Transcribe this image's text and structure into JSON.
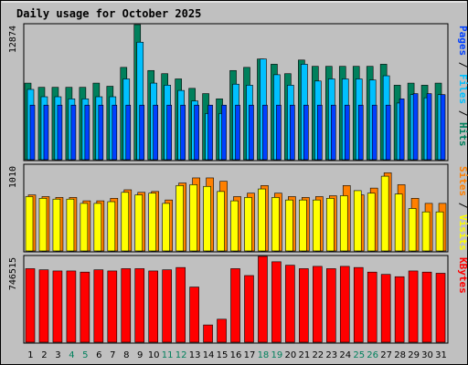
{
  "colors": {
    "background": "#c0c0c0",
    "hits": "#00805c",
    "files": "#00c0ff",
    "pages": "#0040ff",
    "visits": "#ffff00",
    "sites": "#ff8000",
    "kbytes": "#ff0000",
    "title": "#0000ff",
    "weekend_tick": "#00805c",
    "weekday_tick": "#000000"
  },
  "chart_data": {
    "type": "bar",
    "title": "Daily usage for October 2025",
    "categories": [
      "1",
      "2",
      "3",
      "4",
      "5",
      "6",
      "7",
      "8",
      "9",
      "10",
      "11",
      "12",
      "13",
      "14",
      "15",
      "16",
      "17",
      "18",
      "19",
      "20",
      "21",
      "22",
      "23",
      "24",
      "25",
      "26",
      "27",
      "28",
      "29",
      "30",
      "31"
    ],
    "weekend_days": [
      "4",
      "5",
      "11",
      "12",
      "18",
      "19",
      "25",
      "26"
    ],
    "panels": [
      {
        "name": "traffic",
        "max_label": "12874",
        "ylim": [
          0,
          12874
        ],
        "side_labels": [
          "Pages",
          "/",
          "Files",
          "/",
          "Hits"
        ],
        "series": [
          {
            "name": "Hits",
            "values": [
              7300,
              6900,
              6900,
              6900,
              6900,
              7300,
              7000,
              8800,
              12874,
              8500,
              8200,
              7700,
              6800,
              6300,
              5800,
              8500,
              8800,
              9600,
              9100,
              8200,
              9500,
              8900,
              8900,
              8900,
              8900,
              8900,
              9100,
              7100,
              7300,
              7100,
              7300
            ]
          },
          {
            "name": "Files",
            "values": [
              6700,
              6000,
              6000,
              5800,
              5800,
              6000,
              6000,
              7700,
              11200,
              7300,
              7100,
              6600,
              5600,
              4400,
              4400,
              7200,
              7100,
              9600,
              8100,
              7100,
              9100,
              7500,
              7700,
              7700,
              7700,
              7600,
              8000,
              5400,
              6200,
              5900,
              6200
            ]
          },
          {
            "name": "Pages",
            "values": [
              5200,
              5200,
              5200,
              5200,
              5200,
              5200,
              5200,
              5200,
              5200,
              5200,
              5200,
              5200,
              5200,
              5200,
              5200,
              5200,
              5200,
              5200,
              5200,
              5200,
              5200,
              5200,
              5200,
              5200,
              5200,
              5200,
              5200,
              5800,
              6300,
              6300,
              6200
            ]
          }
        ]
      },
      {
        "name": "visitors",
        "max_label": "1010",
        "ylim": [
          0,
          1010
        ],
        "side_labels": [
          "Sites",
          "/",
          "Visits"
        ],
        "series": [
          {
            "name": "Visits",
            "values": [
              640,
              620,
              610,
              610,
              560,
              560,
              580,
              690,
              660,
              680,
              560,
              770,
              780,
              760,
              700,
              590,
              630,
              730,
              630,
              600,
              600,
              600,
              620,
              650,
              710,
              680,
              880,
              670,
              500,
              460,
              460
            ]
          },
          {
            "name": "Sites",
            "values": [
              660,
              640,
              630,
              630,
              590,
              590,
              620,
              720,
              690,
              700,
              600,
              800,
              860,
              860,
              820,
              640,
              680,
              770,
              680,
              640,
              630,
              640,
              650,
              770,
              660,
              740,
              920,
              780,
              620,
              560,
              560
            ]
          }
        ]
      },
      {
        "name": "volume",
        "max_label": "746515",
        "ylim": [
          0,
          746515
        ],
        "side_labels": [
          "KBytes"
        ],
        "series": [
          {
            "name": "KBytes",
            "values": [
              640000,
              630000,
              620000,
              620000,
              610000,
              630000,
              620000,
              640000,
              640000,
              620000,
              630000,
              650000,
              480000,
              150000,
              200000,
              640000,
              580000,
              746515,
              700000,
              670000,
              640000,
              660000,
              640000,
              660000,
              650000,
              610000,
              590000,
              570000,
              620000,
              610000,
              600000
            ]
          }
        ]
      }
    ]
  }
}
